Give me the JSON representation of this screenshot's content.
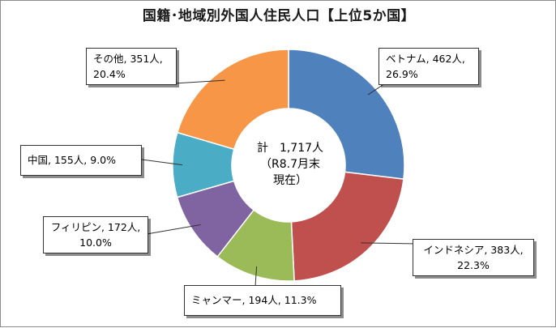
{
  "chart_data": {
    "type": "pie",
    "title": "国籍･地域別外国人住民人口【上位5か国】",
    "center": {
      "line1": "計　1,717人",
      "line2": "（R8.7月末",
      "line3": "現在）"
    },
    "total": 1717,
    "slices": [
      {
        "name": "ベトナム",
        "value": 462,
        "percent": 26.9,
        "label_line1": "ベトナム, 462人,",
        "label_line2": "26.9%",
        "color": "#4f81bd"
      },
      {
        "name": "インドネシア",
        "value": 383,
        "percent": 22.3,
        "label_line1": "インドネシア, 383人,",
        "label_line2": "22.3%",
        "color": "#c0504d"
      },
      {
        "name": "ミャンマー",
        "value": 194,
        "percent": 11.3,
        "label_line1": "ミャンマー, 194人, 11.3%",
        "label_line2": "",
        "color": "#9bbb59"
      },
      {
        "name": "フィリピン",
        "value": 172,
        "percent": 10.0,
        "label_line1": "フィリピン, 172人,",
        "label_line2": "10.0%",
        "color": "#8064a2"
      },
      {
        "name": "中国",
        "value": 155,
        "percent": 9.0,
        "label_line1": "中国, 155人, 9.0%",
        "label_line2": "",
        "color": "#4bacc6"
      },
      {
        "name": "その他",
        "value": 351,
        "percent": 20.4,
        "label_line1": "その他, 351人,",
        "label_line2": "20.4%",
        "color": "#f79646"
      }
    ]
  }
}
